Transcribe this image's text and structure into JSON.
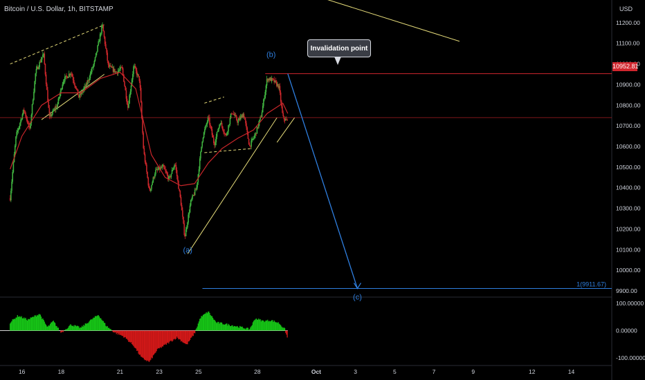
{
  "header": {
    "symbol": "Bitcoin / U.S. Dollar, 1h, BITSTAMP",
    "currency": "USD"
  },
  "callout": {
    "label": "Invalidation point"
  },
  "current_price_tag": "10952.81",
  "wave_labels": {
    "a": "(a)",
    "b": "(b)",
    "c": "(c)"
  },
  "target_label": "1(9911.67)",
  "colors": {
    "background": "#000000",
    "price_line": "#d1262e",
    "target_line": "#2f7fe0",
    "trendline": "#e6dc7a",
    "up_candle": "#3fb23f",
    "down_candle": "#c8262a",
    "ma_line": "#c8262a",
    "osc_positive": "#16c216",
    "osc_negative": "#d01818"
  },
  "chart_data": [
    {
      "type": "candlestick",
      "title": "Bitcoin / U.S. Dollar, 1h, BITSTAMP",
      "x_ticks": [
        "16",
        "18",
        "21",
        "23",
        "25",
        "28",
        "Oct",
        "3",
        "5",
        "7",
        "9",
        "12",
        "14"
      ],
      "y_ticks": [
        9900,
        10000,
        10100,
        10200,
        10300,
        10400,
        10500,
        10600,
        10700,
        10800,
        10900,
        11000,
        11100,
        11200
      ],
      "y_tick_labels": [
        "9900.00",
        "10000.00",
        "10100.00",
        "10200.00",
        "10300.00",
        "10400.00",
        "10500.00",
        "10600.00",
        "10700.00",
        "10800.00",
        "10900.00",
        "11000.00",
        "11100.00",
        "11200.00"
      ],
      "ylim": [
        9870,
        11290
      ],
      "price_keypoints": [
        [
          15.4,
          10350
        ],
        [
          15.7,
          10650
        ],
        [
          16.1,
          10780
        ],
        [
          16.4,
          10680
        ],
        [
          16.7,
          10960
        ],
        [
          17.1,
          11050
        ],
        [
          17.4,
          10740
        ],
        [
          17.8,
          10800
        ],
        [
          18.1,
          10920
        ],
        [
          18.5,
          10960
        ],
        [
          18.9,
          10840
        ],
        [
          19.3,
          10900
        ],
        [
          19.7,
          11010
        ],
        [
          20.1,
          11190
        ],
        [
          20.4,
          10990
        ],
        [
          20.8,
          10960
        ],
        [
          21.1,
          10980
        ],
        [
          21.4,
          10790
        ],
        [
          21.7,
          10990
        ],
        [
          22.0,
          10920
        ],
        [
          22.2,
          10580
        ],
        [
          22.5,
          10380
        ],
        [
          22.8,
          10480
        ],
        [
          23.2,
          10500
        ],
        [
          23.5,
          10440
        ],
        [
          23.8,
          10520
        ],
        [
          24.1,
          10330
        ],
        [
          24.3,
          10160
        ],
        [
          24.6,
          10330
        ],
        [
          24.9,
          10400
        ],
        [
          25.2,
          10640
        ],
        [
          25.5,
          10740
        ],
        [
          25.8,
          10610
        ],
        [
          26.1,
          10720
        ],
        [
          26.4,
          10650
        ],
        [
          26.7,
          10770
        ],
        [
          27.0,
          10720
        ],
        [
          27.3,
          10760
        ],
        [
          27.6,
          10600
        ],
        [
          27.9,
          10660
        ],
        [
          28.2,
          10750
        ],
        [
          28.5,
          10930
        ],
        [
          28.8,
          10920
        ],
        [
          29.1,
          10890
        ],
        [
          29.3,
          10740
        ],
        [
          29.55,
          10720
        ]
      ],
      "moving_average": [
        [
          15.4,
          10490
        ],
        [
          16.0,
          10650
        ],
        [
          17.0,
          10800
        ],
        [
          18.0,
          10860
        ],
        [
          19.0,
          10860
        ],
        [
          20.0,
          10930
        ],
        [
          21.0,
          10960
        ],
        [
          21.8,
          10880
        ],
        [
          22.6,
          10560
        ],
        [
          23.3,
          10450
        ],
        [
          24.1,
          10410
        ],
        [
          24.8,
          10420
        ],
        [
          25.5,
          10520
        ],
        [
          26.2,
          10590
        ],
        [
          27.0,
          10640
        ],
        [
          27.8,
          10680
        ],
        [
          28.5,
          10760
        ],
        [
          29.3,
          10810
        ],
        [
          29.55,
          10760
        ]
      ],
      "current_price": 10952.81,
      "horizontal_levels": [
        {
          "name": "invalidation",
          "value": 10952.81
        },
        {
          "name": "support",
          "value": 10740
        }
      ],
      "target": {
        "label": "1(9911.67)",
        "value": 9911.67
      },
      "wave_points": [
        {
          "label": "(a)",
          "x": 24.45,
          "y": 10140
        },
        {
          "label": "(b)",
          "x": 28.7,
          "y": 10960
        },
        {
          "label": "(c)",
          "x": 33.1,
          "y": 9911.67
        }
      ],
      "projection": [
        [
          29.55,
          10952.81
        ],
        [
          33.1,
          9911.67
        ]
      ],
      "trendlines": [
        [
          [
            15.4,
            11000
          ],
          [
            20.2,
            11190
          ]
        ],
        [
          [
            17.0,
            10730
          ],
          [
            20.2,
            10950
          ]
        ],
        [
          [
            24.45,
            10080
          ],
          [
            29.0,
            10740
          ]
        ],
        [
          [
            25.3,
            10810
          ],
          [
            26.3,
            10840
          ]
        ],
        [
          [
            25.3,
            10570
          ],
          [
            27.7,
            10590
          ]
        ],
        [
          [
            29.0,
            10620
          ],
          [
            29.9,
            10740
          ]
        ],
        [
          [
            31.3,
            11320
          ],
          [
            38.3,
            11110
          ]
        ]
      ]
    },
    {
      "type": "area",
      "title": "",
      "y_ticks": [
        100,
        0,
        -100
      ],
      "y_tick_labels": [
        "100.00000",
        "0.00000",
        "-100.00000"
      ],
      "ylim": [
        -128,
        118
      ],
      "oscillator_keypoints": [
        [
          15.4,
          30
        ],
        [
          15.8,
          55
        ],
        [
          16.3,
          40
        ],
        [
          16.9,
          62
        ],
        [
          17.3,
          12
        ],
        [
          17.6,
          35
        ],
        [
          18.0,
          -8
        ],
        [
          18.5,
          22
        ],
        [
          19.0,
          10
        ],
        [
          19.5,
          38
        ],
        [
          19.9,
          58
        ],
        [
          20.3,
          18
        ],
        [
          20.7,
          -6
        ],
        [
          21.2,
          -22
        ],
        [
          21.7,
          -55
        ],
        [
          22.1,
          -100
        ],
        [
          22.5,
          -115
        ],
        [
          22.9,
          -70
        ],
        [
          23.4,
          -48
        ],
        [
          23.9,
          -25
        ],
        [
          24.4,
          -52
        ],
        [
          24.8,
          -10
        ],
        [
          25.1,
          48
        ],
        [
          25.5,
          70
        ],
        [
          25.9,
          30
        ],
        [
          26.3,
          25
        ],
        [
          26.8,
          18
        ],
        [
          27.2,
          12
        ],
        [
          27.6,
          5
        ],
        [
          27.9,
          45
        ],
        [
          28.3,
          35
        ],
        [
          28.7,
          38
        ],
        [
          29.1,
          28
        ],
        [
          29.4,
          5
        ],
        [
          29.55,
          -32
        ]
      ]
    }
  ]
}
